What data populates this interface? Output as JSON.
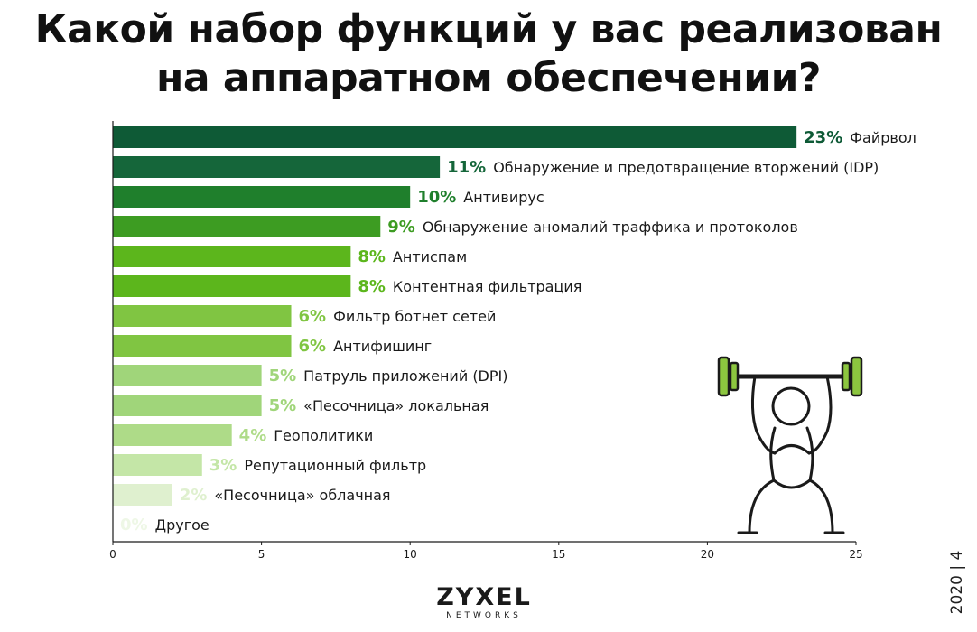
{
  "chart_data": {
    "type": "bar",
    "orientation": "horizontal",
    "title_lines": [
      "Какой набор функций у вас реализован",
      "на аппаратном обеспечении?"
    ],
    "categories": [
      "Файрвол",
      "Обнаружение и предотвращение вторжений (IDP)",
      "Антивирус",
      "Обнаружение аномалий траффика и протоколов",
      "Антиспам",
      "Контентная фильтрация",
      "Фильтр ботнет сетей",
      "Антифишинг",
      "Патруль приложений (DPI)",
      "«Песочница» локальная",
      "Геополитики",
      "Репутационный фильтр",
      "«Песочница» облачная",
      "Другое"
    ],
    "values": [
      23,
      11,
      10,
      9,
      8,
      8,
      6,
      6,
      5,
      5,
      4,
      3,
      2,
      0
    ],
    "value_labels": [
      "23%",
      "11%",
      "10%",
      "9%",
      "8%",
      "8%",
      "6%",
      "6%",
      "5%",
      "5%",
      "4%",
      "3%",
      "2%",
      "0%"
    ],
    "colors": [
      "#0e5a36",
      "#15663a",
      "#1f7f2c",
      "#3d9c22",
      "#5cb61c",
      "#5cb61c",
      "#80c542",
      "#80c542",
      "#a0d57a",
      "#a0d57a",
      "#aedb88",
      "#c4e6a7",
      "#dff0cf",
      "#eef7e6"
    ],
    "label_colors": [
      "#0e5a36",
      "#15663a",
      "#1f7f2c",
      "#3d9c22",
      "#5cb61c",
      "#5cb61c",
      "#80c542",
      "#80c542",
      "#a0d57a",
      "#a0d57a",
      "#aedb88",
      "#c4e6a7",
      "#dff0cf",
      "#eef7e6"
    ],
    "xlim": [
      0,
      25
    ],
    "xticks": [
      "0",
      "5",
      "10",
      "15",
      "20",
      "25"
    ],
    "xlabel": "",
    "ylabel": "",
    "grid": false
  },
  "illustration": {
    "name": "weightlifter-icon",
    "color": "#8cc63f"
  },
  "footer": {
    "logo_main": "ZYXEL",
    "logo_sub": "NETWORKS",
    "page_stamp": "2020 | 4"
  }
}
